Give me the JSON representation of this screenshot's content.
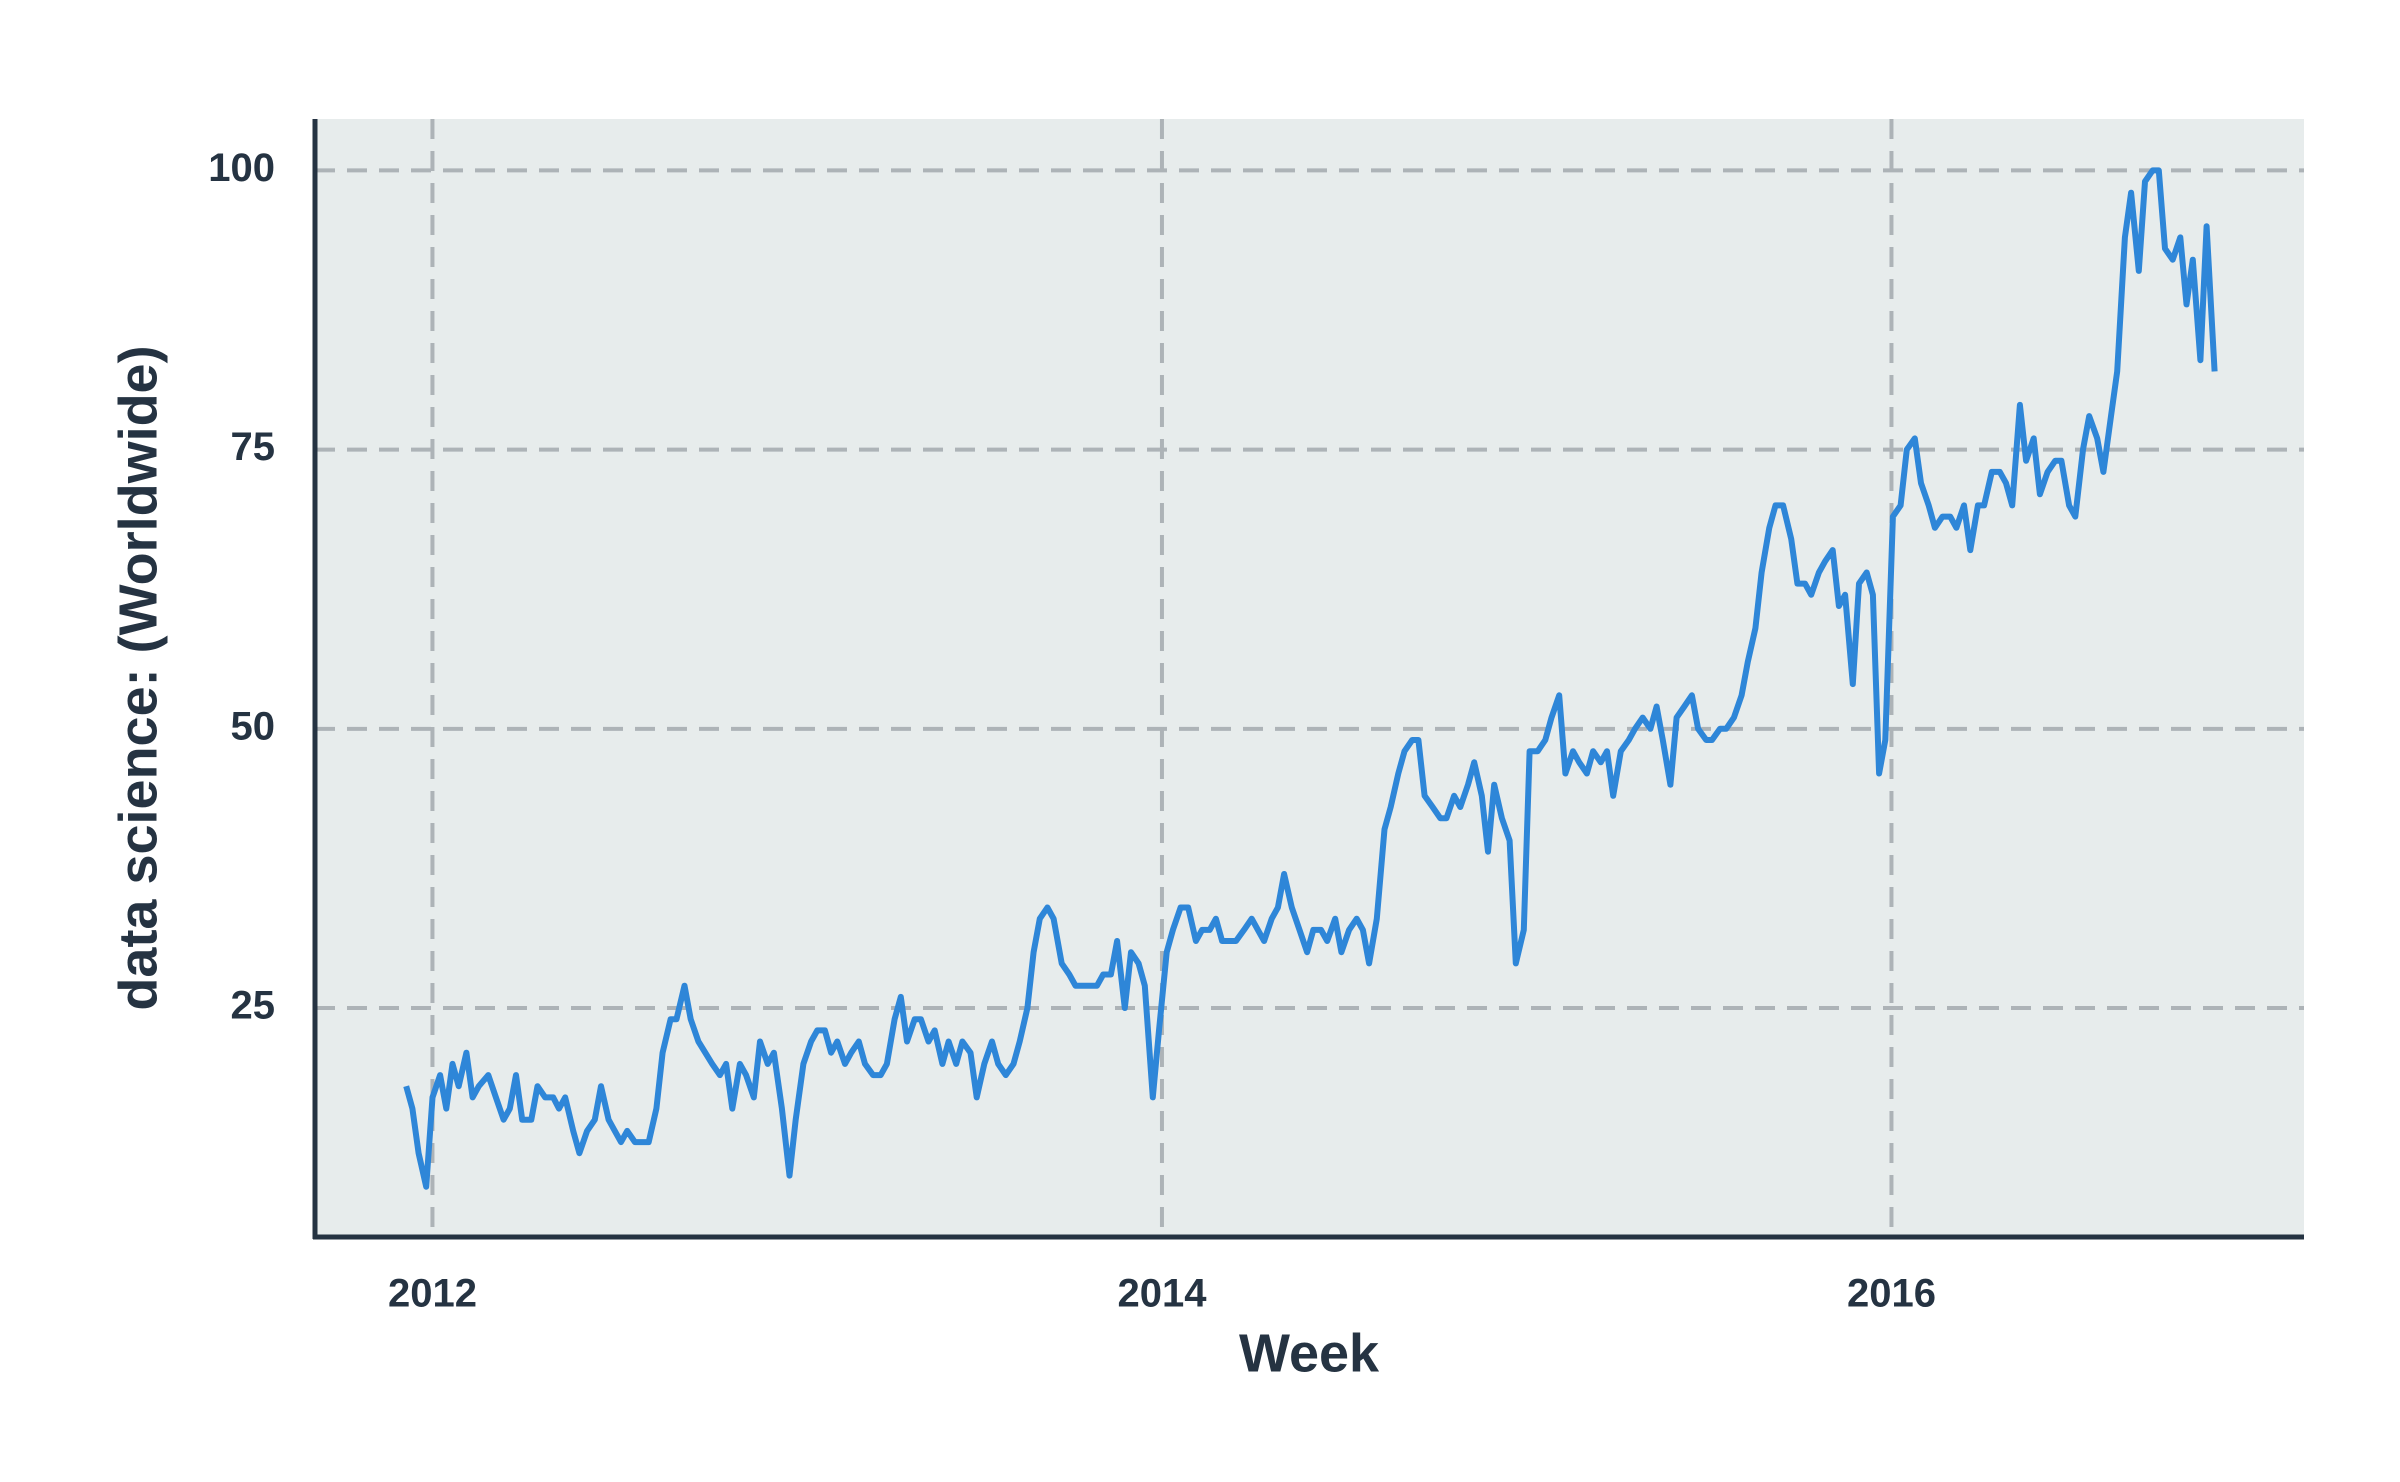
{
  "chart_data": {
    "type": "line",
    "xlabel": "Week",
    "ylabel": "data science: (Worldwide)",
    "color": "#2e86d8",
    "grid": true,
    "xlim": [
      2011.678,
      2017.131
    ],
    "xticks": [
      2012,
      2014,
      2016
    ],
    "ylim": [
      4.5,
      104.6
    ],
    "yticks": [
      25,
      50,
      75,
      100
    ],
    "x": [
      2011.928,
      2011.945,
      2011.962,
      2011.983,
      2012.0,
      2012.021,
      2012.038,
      2012.055,
      2012.072,
      2012.093,
      2012.11,
      2012.127,
      2012.153,
      2012.174,
      2012.195,
      2012.212,
      2012.229,
      2012.246,
      2012.271,
      2012.288,
      2012.309,
      2012.331,
      2012.347,
      2012.364,
      2012.386,
      2012.403,
      2012.424,
      2012.445,
      2012.462,
      2012.483,
      2012.5,
      2012.517,
      2012.534,
      2012.555,
      2012.593,
      2012.614,
      2012.631,
      2012.653,
      2012.669,
      2012.691,
      2012.708,
      2012.729,
      2012.767,
      2012.788,
      2012.805,
      2012.822,
      2012.843,
      2012.86,
      2012.881,
      2012.898,
      2012.919,
      2012.936,
      2012.958,
      2012.979,
      2012.996,
      2013.017,
      2013.038,
      2013.055,
      2013.076,
      2013.093,
      2013.11,
      2013.131,
      2013.148,
      2013.169,
      2013.186,
      2013.208,
      2013.229,
      2013.246,
      2013.267,
      2013.284,
      2013.301,
      2013.322,
      2013.339,
      2013.36,
      2013.377,
      2013.398,
      2013.415,
      2013.436,
      2013.453,
      2013.475,
      2013.492,
      2013.513,
      2013.534,
      2013.551,
      2013.572,
      2013.593,
      2013.61,
      2013.631,
      2013.648,
      2013.665,
      2013.686,
      2013.703,
      2013.725,
      2013.746,
      2013.763,
      2013.822,
      2013.839,
      2013.86,
      2013.877,
      2013.898,
      2013.915,
      2013.936,
      2013.953,
      2013.975,
      2013.992,
      2014.013,
      2014.03,
      2014.051,
      2014.072,
      2014.093,
      2014.11,
      2014.131,
      2014.148,
      2014.165,
      2014.203,
      2014.225,
      2014.246,
      2014.263,
      2014.28,
      2014.301,
      2014.318,
      2014.335,
      2014.356,
      2014.377,
      2014.398,
      2014.415,
      2014.436,
      2014.453,
      2014.475,
      2014.492,
      2014.513,
      2014.534,
      2014.551,
      2014.568,
      2014.589,
      2014.61,
      2014.627,
      2014.648,
      2014.665,
      2014.686,
      2014.703,
      2014.72,
      2014.742,
      2014.763,
      2014.78,
      2014.801,
      2014.818,
      2014.839,
      2014.856,
      2014.877,
      2014.894,
      2014.911,
      2014.932,
      2014.953,
      2014.97,
      2014.992,
      2015.008,
      2015.03,
      2015.051,
      2015.068,
      2015.089,
      2015.106,
      2015.127,
      2015.144,
      2015.165,
      2015.182,
      2015.203,
      2015.22,
      2015.237,
      2015.258,
      2015.28,
      2015.297,
      2015.318,
      2015.339,
      2015.356,
      2015.373,
      2015.394,
      2015.411,
      2015.432,
      2015.453,
      2015.47,
      2015.492,
      2015.508,
      2015.53,
      2015.547,
      2015.568,
      2015.589,
      2015.606,
      2015.627,
      2015.644,
      2015.665,
      2015.682,
      2015.703,
      2015.725,
      2015.742,
      2015.763,
      2015.78,
      2015.801,
      2015.818,
      2015.839,
      2015.856,
      2015.873,
      2015.894,
      2015.911,
      2015.932,
      2015.949,
      2015.966,
      2015.983,
      2016.004,
      2016.025,
      2016.042,
      2016.064,
      2016.081,
      2016.102,
      2016.119,
      2016.14,
      2016.161,
      2016.178,
      2016.199,
      2016.216,
      2016.237,
      2016.254,
      2016.275,
      2016.297,
      2016.314,
      2016.331,
      2016.352,
      2016.369,
      2016.39,
      2016.407,
      2016.428,
      2016.449,
      2016.466,
      2016.487,
      2016.504,
      2016.525,
      2016.542,
      2016.564,
      2016.581,
      2016.602,
      2016.619,
      2016.64,
      2016.657,
      2016.678,
      2016.695,
      2016.716,
      2016.733,
      2016.75,
      2016.771,
      2016.792,
      2016.809,
      2016.826,
      2016.847,
      2016.864,
      2016.886
    ],
    "values": [
      18,
      16,
      12,
      9,
      17,
      19,
      16,
      20,
      18,
      21,
      17,
      18,
      19,
      17,
      15,
      16,
      19,
      15,
      15,
      18,
      17,
      17,
      16,
      17,
      14,
      12,
      14,
      15,
      18,
      15,
      14,
      13,
      14,
      13,
      13,
      16,
      21,
      24,
      24,
      27,
      24,
      22,
      20,
      19,
      20,
      16,
      20,
      19,
      17,
      22,
      20,
      21,
      16,
      10,
      15,
      20,
      22,
      23,
      23,
      21,
      22,
      20,
      21,
      22,
      20,
      19,
      19,
      20,
      24,
      26,
      22,
      24,
      24,
      22,
      23,
      20,
      22,
      20,
      22,
      21,
      17,
      20,
      22,
      20,
      19,
      20,
      22,
      25,
      30,
      33,
      34,
      33,
      29,
      28,
      27,
      27,
      28,
      28,
      31,
      25,
      30,
      29,
      27,
      17,
      23,
      30,
      32,
      34,
      34,
      31,
      32,
      32,
      33,
      31,
      31,
      32,
      33,
      32,
      31,
      33,
      34,
      37,
      34,
      32,
      30,
      32,
      32,
      31,
      33,
      30,
      32,
      33,
      32,
      29,
      33,
      41,
      43,
      46,
      48,
      49,
      49,
      44,
      43,
      42,
      42,
      44,
      43,
      45,
      47,
      44,
      39,
      45,
      42,
      40,
      29,
      32,
      48,
      48,
      49,
      51,
      53,
      46,
      48,
      47,
      46,
      48,
      47,
      48,
      44,
      48,
      49,
      50,
      51,
      50,
      52,
      49,
      45,
      51,
      52,
      53,
      50,
      49,
      49,
      50,
      50,
      51,
      53,
      56,
      59,
      64,
      68,
      70,
      70,
      67,
      63,
      63,
      62,
      64,
      65,
      66,
      61,
      62,
      54,
      63,
      64,
      62,
      46,
      49,
      69,
      70,
      75,
      76,
      72,
      70,
      68,
      69,
      69,
      68,
      70,
      66,
      70,
      70,
      73,
      73,
      72,
      70,
      79,
      74,
      76,
      71,
      73,
      74,
      74,
      70,
      69,
      75,
      78,
      76,
      73,
      78,
      82,
      94,
      98,
      91,
      99,
      100,
      100,
      93,
      92,
      94,
      88,
      92,
      83,
      95,
      82
    ]
  }
}
